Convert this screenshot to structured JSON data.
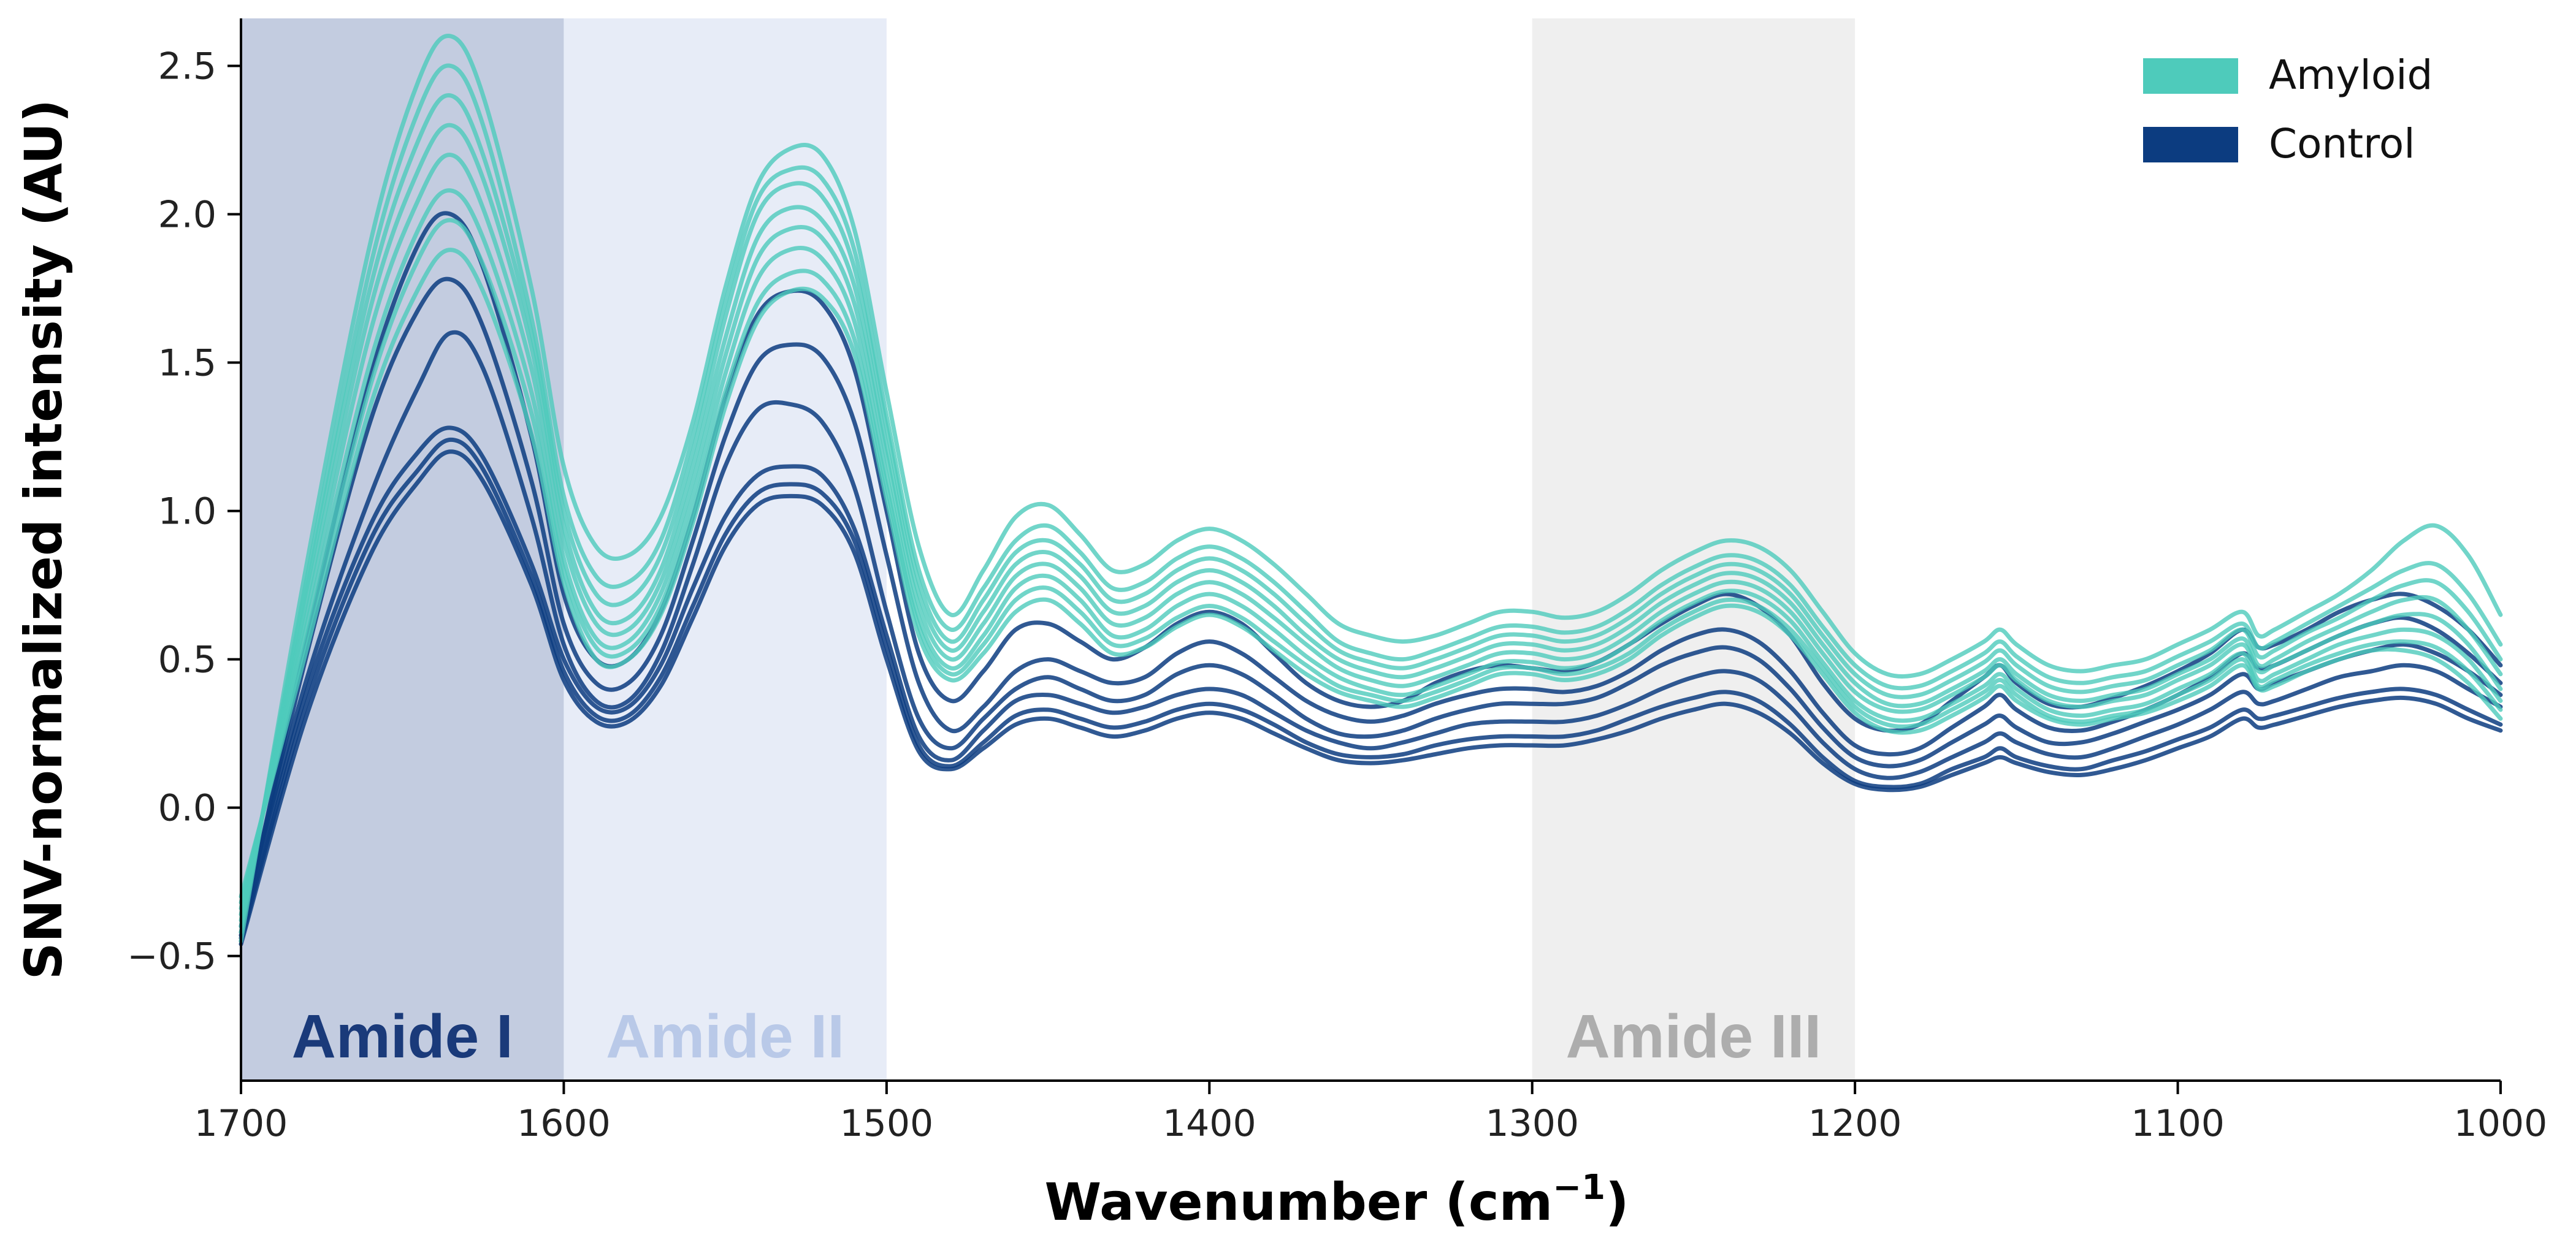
{
  "chart_data": {
    "type": "line",
    "title": "",
    "xlabel": "Wavenumber (cm",
    "xlabel_sup": "−1",
    "xlabel_close": ")",
    "ylabel": "SNV-normalized intensity (AU)",
    "xlim": [
      1700,
      1000
    ],
    "ylim": [
      -0.92,
      2.66
    ],
    "x_reversed": true,
    "grid": false,
    "legend_position": "top-right",
    "x_ticks": [
      {
        "value": 1700,
        "label": "1700"
      },
      {
        "value": 1600,
        "label": "1600"
      },
      {
        "value": 1500,
        "label": "1500"
      },
      {
        "value": 1400,
        "label": "1400"
      },
      {
        "value": 1300,
        "label": "1300"
      },
      {
        "value": 1200,
        "label": "1200"
      },
      {
        "value": 1100,
        "label": "1100"
      },
      {
        "value": 1000,
        "label": "1000"
      }
    ],
    "y_ticks": [
      {
        "value": -0.5,
        "label": "−0.5"
      },
      {
        "value": 0.0,
        "label": "0.0"
      },
      {
        "value": 0.5,
        "label": "0.5"
      },
      {
        "value": 1.0,
        "label": "1.0"
      },
      {
        "value": 1.5,
        "label": "1.5"
      },
      {
        "value": 2.0,
        "label": "2.0"
      },
      {
        "value": 2.5,
        "label": "2.5"
      }
    ],
    "regions": [
      {
        "name": "Amide I",
        "from": 1700,
        "to": 1600,
        "fill": "#c3cce0",
        "text_color": "#1a3a7a"
      },
      {
        "name": "Amide II",
        "from": 1600,
        "to": 1500,
        "fill": "#e7ecf7",
        "text_color": "#b9c9e8"
      },
      {
        "name": "Amide III",
        "from": 1300,
        "to": 1200,
        "fill": "#efefef",
        "text_color": "#adadad"
      }
    ],
    "legend": [
      {
        "label": "Amyloid",
        "color": "#4ecbbb"
      },
      {
        "label": "Control",
        "color": "#0c3c80"
      }
    ],
    "x": [
      1700,
      1680,
      1660,
      1645,
      1635,
      1625,
      1610,
      1600,
      1590,
      1580,
      1570,
      1560,
      1550,
      1540,
      1530,
      1520,
      1510,
      1500,
      1490,
      1480,
      1470,
      1460,
      1450,
      1440,
      1430,
      1420,
      1410,
      1400,
      1390,
      1380,
      1370,
      1360,
      1350,
      1340,
      1330,
      1320,
      1310,
      1300,
      1290,
      1280,
      1270,
      1260,
      1250,
      1240,
      1230,
      1220,
      1210,
      1200,
      1190,
      1180,
      1170,
      1160,
      1155,
      1150,
      1140,
      1130,
      1120,
      1110,
      1100,
      1090,
      1080,
      1075,
      1070,
      1060,
      1050,
      1040,
      1030,
      1020,
      1010,
      1000
    ],
    "series": [
      {
        "group": "Amyloid",
        "name": "",
        "values": [
          -0.45,
          0.8,
          1.9,
          2.45,
          2.6,
          2.4,
          1.75,
          1.15,
          0.88,
          0.85,
          0.98,
          1.3,
          1.75,
          2.1,
          2.22,
          2.2,
          1.95,
          1.4,
          0.88,
          0.65,
          0.8,
          0.98,
          1.02,
          0.92,
          0.8,
          0.82,
          0.9,
          0.94,
          0.9,
          0.82,
          0.72,
          0.62,
          0.58,
          0.56,
          0.58,
          0.62,
          0.66,
          0.66,
          0.64,
          0.66,
          0.72,
          0.8,
          0.86,
          0.9,
          0.88,
          0.8,
          0.66,
          0.52,
          0.45,
          0.45,
          0.5,
          0.56,
          0.6,
          0.55,
          0.48,
          0.46,
          0.48,
          0.5,
          0.55,
          0.6,
          0.66,
          0.58,
          0.6,
          0.66,
          0.72,
          0.8,
          0.9,
          0.95,
          0.85,
          0.65
        ]
      },
      {
        "group": "Amyloid",
        "name": "",
        "values": [
          -0.42,
          0.75,
          1.82,
          2.35,
          2.5,
          2.3,
          1.65,
          1.05,
          0.78,
          0.76,
          0.9,
          1.25,
          1.7,
          2.05,
          2.15,
          2.12,
          1.88,
          1.32,
          0.8,
          0.6,
          0.74,
          0.9,
          0.95,
          0.86,
          0.74,
          0.76,
          0.84,
          0.88,
          0.84,
          0.76,
          0.66,
          0.56,
          0.52,
          0.5,
          0.53,
          0.57,
          0.61,
          0.61,
          0.59,
          0.61,
          0.67,
          0.75,
          0.81,
          0.85,
          0.83,
          0.75,
          0.61,
          0.48,
          0.41,
          0.41,
          0.46,
          0.52,
          0.56,
          0.51,
          0.44,
          0.42,
          0.44,
          0.46,
          0.51,
          0.56,
          0.62,
          0.54,
          0.56,
          0.62,
          0.68,
          0.74,
          0.8,
          0.82,
          0.72,
          0.55
        ]
      },
      {
        "group": "Amyloid",
        "name": "",
        "values": [
          -0.4,
          0.72,
          1.75,
          2.25,
          2.4,
          2.2,
          1.6,
          1.0,
          0.72,
          0.7,
          0.85,
          1.2,
          1.65,
          2.0,
          2.1,
          2.06,
          1.82,
          1.28,
          0.76,
          0.56,
          0.7,
          0.86,
          0.9,
          0.82,
          0.7,
          0.72,
          0.8,
          0.84,
          0.8,
          0.72,
          0.62,
          0.53,
          0.49,
          0.47,
          0.5,
          0.54,
          0.58,
          0.58,
          0.56,
          0.58,
          0.64,
          0.72,
          0.78,
          0.82,
          0.8,
          0.72,
          0.58,
          0.45,
          0.38,
          0.38,
          0.43,
          0.49,
          0.53,
          0.48,
          0.41,
          0.39,
          0.41,
          0.43,
          0.48,
          0.53,
          0.6,
          0.51,
          0.53,
          0.59,
          0.64,
          0.7,
          0.75,
          0.76,
          0.66,
          0.5
        ]
      },
      {
        "group": "Amyloid",
        "name": "",
        "values": [
          -0.38,
          0.68,
          1.68,
          2.15,
          2.3,
          2.12,
          1.55,
          0.95,
          0.66,
          0.64,
          0.8,
          1.15,
          1.58,
          1.92,
          2.02,
          1.98,
          1.76,
          1.22,
          0.72,
          0.53,
          0.66,
          0.82,
          0.86,
          0.78,
          0.66,
          0.68,
          0.76,
          0.8,
          0.76,
          0.68,
          0.58,
          0.5,
          0.46,
          0.44,
          0.47,
          0.51,
          0.55,
          0.55,
          0.53,
          0.55,
          0.61,
          0.69,
          0.75,
          0.79,
          0.77,
          0.69,
          0.55,
          0.42,
          0.35,
          0.35,
          0.4,
          0.46,
          0.5,
          0.45,
          0.38,
          0.36,
          0.38,
          0.4,
          0.45,
          0.5,
          0.57,
          0.48,
          0.5,
          0.56,
          0.61,
          0.66,
          0.7,
          0.7,
          0.6,
          0.45
        ]
      },
      {
        "group": "Amyloid",
        "name": "",
        "values": [
          -0.36,
          0.64,
          1.6,
          2.05,
          2.2,
          2.02,
          1.48,
          0.9,
          0.62,
          0.6,
          0.76,
          1.1,
          1.52,
          1.85,
          1.95,
          1.92,
          1.7,
          1.18,
          0.68,
          0.5,
          0.62,
          0.78,
          0.82,
          0.74,
          0.62,
          0.64,
          0.72,
          0.76,
          0.72,
          0.64,
          0.55,
          0.47,
          0.43,
          0.41,
          0.44,
          0.48,
          0.52,
          0.52,
          0.5,
          0.52,
          0.58,
          0.66,
          0.72,
          0.76,
          0.74,
          0.66,
          0.52,
          0.39,
          0.33,
          0.33,
          0.38,
          0.44,
          0.48,
          0.43,
          0.36,
          0.34,
          0.36,
          0.38,
          0.43,
          0.48,
          0.55,
          0.46,
          0.48,
          0.53,
          0.58,
          0.62,
          0.65,
          0.64,
          0.55,
          0.4
        ]
      },
      {
        "group": "Amyloid",
        "name": "",
        "values": [
          -0.34,
          0.6,
          1.5,
          1.95,
          2.08,
          1.92,
          1.4,
          0.84,
          0.57,
          0.56,
          0.72,
          1.05,
          1.46,
          1.78,
          1.88,
          1.85,
          1.64,
          1.12,
          0.64,
          0.47,
          0.58,
          0.74,
          0.78,
          0.7,
          0.58,
          0.6,
          0.68,
          0.72,
          0.68,
          0.6,
          0.51,
          0.44,
          0.4,
          0.38,
          0.41,
          0.45,
          0.49,
          0.49,
          0.47,
          0.49,
          0.55,
          0.63,
          0.69,
          0.73,
          0.71,
          0.63,
          0.49,
          0.36,
          0.3,
          0.3,
          0.35,
          0.41,
          0.45,
          0.4,
          0.33,
          0.31,
          0.33,
          0.35,
          0.4,
          0.45,
          0.52,
          0.43,
          0.45,
          0.5,
          0.55,
          0.58,
          0.6,
          0.58,
          0.5,
          0.36
        ]
      },
      {
        "group": "Amyloid",
        "name": "",
        "values": [
          -0.32,
          0.56,
          1.42,
          1.85,
          1.98,
          1.83,
          1.33,
          0.8,
          0.54,
          0.53,
          0.68,
          1.0,
          1.4,
          1.7,
          1.8,
          1.78,
          1.58,
          1.08,
          0.61,
          0.45,
          0.55,
          0.7,
          0.74,
          0.66,
          0.55,
          0.57,
          0.64,
          0.68,
          0.64,
          0.56,
          0.48,
          0.41,
          0.38,
          0.36,
          0.39,
          0.43,
          0.47,
          0.47,
          0.45,
          0.47,
          0.52,
          0.6,
          0.66,
          0.7,
          0.68,
          0.6,
          0.47,
          0.34,
          0.28,
          0.28,
          0.33,
          0.39,
          0.43,
          0.38,
          0.31,
          0.29,
          0.31,
          0.33,
          0.38,
          0.43,
          0.5,
          0.41,
          0.43,
          0.48,
          0.52,
          0.55,
          0.56,
          0.54,
          0.46,
          0.33
        ]
      },
      {
        "group": "Amyloid",
        "name": "",
        "values": [
          -0.3,
          0.52,
          1.35,
          1.75,
          1.88,
          1.74,
          1.26,
          0.76,
          0.5,
          0.5,
          0.65,
          0.96,
          1.35,
          1.64,
          1.74,
          1.72,
          1.53,
          1.04,
          0.58,
          0.43,
          0.52,
          0.66,
          0.7,
          0.62,
          0.52,
          0.54,
          0.61,
          0.65,
          0.61,
          0.53,
          0.45,
          0.39,
          0.36,
          0.34,
          0.37,
          0.41,
          0.45,
          0.45,
          0.43,
          0.45,
          0.5,
          0.58,
          0.64,
          0.68,
          0.66,
          0.58,
          0.45,
          0.32,
          0.26,
          0.26,
          0.31,
          0.37,
          0.41,
          0.36,
          0.3,
          0.28,
          0.3,
          0.32,
          0.36,
          0.41,
          0.48,
          0.4,
          0.41,
          0.46,
          0.5,
          0.53,
          0.53,
          0.5,
          0.42,
          0.3
        ]
      },
      {
        "group": "Control",
        "name": "",
        "values": [
          -0.44,
          0.55,
          1.45,
          1.9,
          2.0,
          1.82,
          1.25,
          0.72,
          0.5,
          0.5,
          0.66,
          0.98,
          1.38,
          1.66,
          1.74,
          1.7,
          1.48,
          1.0,
          0.52,
          0.36,
          0.46,
          0.6,
          0.62,
          0.56,
          0.5,
          0.54,
          0.62,
          0.66,
          0.62,
          0.52,
          0.42,
          0.36,
          0.34,
          0.36,
          0.42,
          0.46,
          0.48,
          0.47,
          0.46,
          0.49,
          0.55,
          0.62,
          0.68,
          0.72,
          0.68,
          0.58,
          0.42,
          0.3,
          0.26,
          0.28,
          0.36,
          0.44,
          0.48,
          0.42,
          0.35,
          0.34,
          0.37,
          0.41,
          0.46,
          0.52,
          0.6,
          0.54,
          0.55,
          0.6,
          0.66,
          0.7,
          0.72,
          0.68,
          0.6,
          0.48
        ]
      },
      {
        "group": "Control",
        "name": "",
        "values": [
          -0.42,
          0.5,
          1.3,
          1.68,
          1.78,
          1.62,
          1.1,
          0.62,
          0.42,
          0.42,
          0.58,
          0.9,
          1.25,
          1.5,
          1.56,
          1.52,
          1.3,
          0.85,
          0.42,
          0.26,
          0.34,
          0.46,
          0.5,
          0.46,
          0.42,
          0.44,
          0.52,
          0.56,
          0.52,
          0.44,
          0.36,
          0.31,
          0.29,
          0.31,
          0.35,
          0.38,
          0.4,
          0.4,
          0.39,
          0.41,
          0.46,
          0.53,
          0.58,
          0.6,
          0.56,
          0.46,
          0.32,
          0.21,
          0.18,
          0.2,
          0.27,
          0.34,
          0.38,
          0.33,
          0.27,
          0.26,
          0.29,
          0.33,
          0.38,
          0.44,
          0.52,
          0.47,
          0.48,
          0.53,
          0.58,
          0.62,
          0.64,
          0.6,
          0.52,
          0.42
        ]
      },
      {
        "group": "Control",
        "name": "",
        "values": [
          -0.4,
          0.42,
          1.05,
          1.42,
          1.6,
          1.48,
          0.98,
          0.55,
          0.36,
          0.36,
          0.52,
          0.82,
          1.15,
          1.34,
          1.36,
          1.3,
          1.08,
          0.66,
          0.3,
          0.2,
          0.3,
          0.4,
          0.44,
          0.4,
          0.36,
          0.38,
          0.45,
          0.48,
          0.45,
          0.38,
          0.3,
          0.25,
          0.24,
          0.26,
          0.3,
          0.33,
          0.35,
          0.35,
          0.35,
          0.37,
          0.42,
          0.48,
          0.52,
          0.54,
          0.5,
          0.4,
          0.27,
          0.17,
          0.14,
          0.16,
          0.22,
          0.28,
          0.31,
          0.27,
          0.22,
          0.22,
          0.25,
          0.29,
          0.33,
          0.38,
          0.45,
          0.4,
          0.42,
          0.46,
          0.5,
          0.53,
          0.55,
          0.52,
          0.46,
          0.38
        ]
      },
      {
        "group": "Control",
        "name": "",
        "values": [
          -0.43,
          0.38,
          0.95,
          1.2,
          1.28,
          1.18,
          0.82,
          0.5,
          0.34,
          0.34,
          0.48,
          0.74,
          0.98,
          1.12,
          1.15,
          1.12,
          0.94,
          0.58,
          0.24,
          0.16,
          0.26,
          0.36,
          0.38,
          0.35,
          0.32,
          0.34,
          0.38,
          0.4,
          0.38,
          0.32,
          0.26,
          0.22,
          0.2,
          0.22,
          0.25,
          0.28,
          0.29,
          0.29,
          0.29,
          0.31,
          0.35,
          0.4,
          0.44,
          0.46,
          0.43,
          0.34,
          0.22,
          0.13,
          0.1,
          0.12,
          0.17,
          0.22,
          0.25,
          0.22,
          0.18,
          0.17,
          0.2,
          0.24,
          0.28,
          0.33,
          0.39,
          0.35,
          0.36,
          0.4,
          0.44,
          0.46,
          0.48,
          0.46,
          0.4,
          0.34
        ]
      },
      {
        "group": "Control",
        "name": "",
        "values": [
          -0.45,
          0.34,
          0.9,
          1.14,
          1.24,
          1.14,
          0.78,
          0.46,
          0.31,
          0.31,
          0.44,
          0.68,
          0.92,
          1.06,
          1.09,
          1.06,
          0.9,
          0.54,
          0.21,
          0.14,
          0.22,
          0.31,
          0.33,
          0.3,
          0.27,
          0.29,
          0.33,
          0.35,
          0.33,
          0.28,
          0.22,
          0.18,
          0.17,
          0.18,
          0.21,
          0.23,
          0.24,
          0.24,
          0.24,
          0.26,
          0.3,
          0.34,
          0.37,
          0.39,
          0.36,
          0.28,
          0.17,
          0.09,
          0.07,
          0.08,
          0.13,
          0.17,
          0.2,
          0.17,
          0.14,
          0.13,
          0.16,
          0.19,
          0.23,
          0.27,
          0.33,
          0.3,
          0.31,
          0.34,
          0.37,
          0.39,
          0.4,
          0.38,
          0.33,
          0.28
        ]
      },
      {
        "group": "Control",
        "name": "",
        "values": [
          -0.46,
          0.3,
          0.85,
          1.1,
          1.2,
          1.1,
          0.75,
          0.43,
          0.29,
          0.29,
          0.41,
          0.64,
          0.88,
          1.02,
          1.05,
          1.02,
          0.86,
          0.5,
          0.19,
          0.13,
          0.2,
          0.28,
          0.3,
          0.27,
          0.24,
          0.26,
          0.3,
          0.32,
          0.3,
          0.25,
          0.2,
          0.16,
          0.15,
          0.16,
          0.18,
          0.2,
          0.21,
          0.21,
          0.21,
          0.23,
          0.26,
          0.3,
          0.33,
          0.35,
          0.32,
          0.25,
          0.15,
          0.08,
          0.06,
          0.07,
          0.11,
          0.15,
          0.17,
          0.15,
          0.12,
          0.11,
          0.13,
          0.16,
          0.2,
          0.24,
          0.3,
          0.27,
          0.28,
          0.31,
          0.34,
          0.36,
          0.37,
          0.35,
          0.3,
          0.26
        ]
      }
    ]
  }
}
